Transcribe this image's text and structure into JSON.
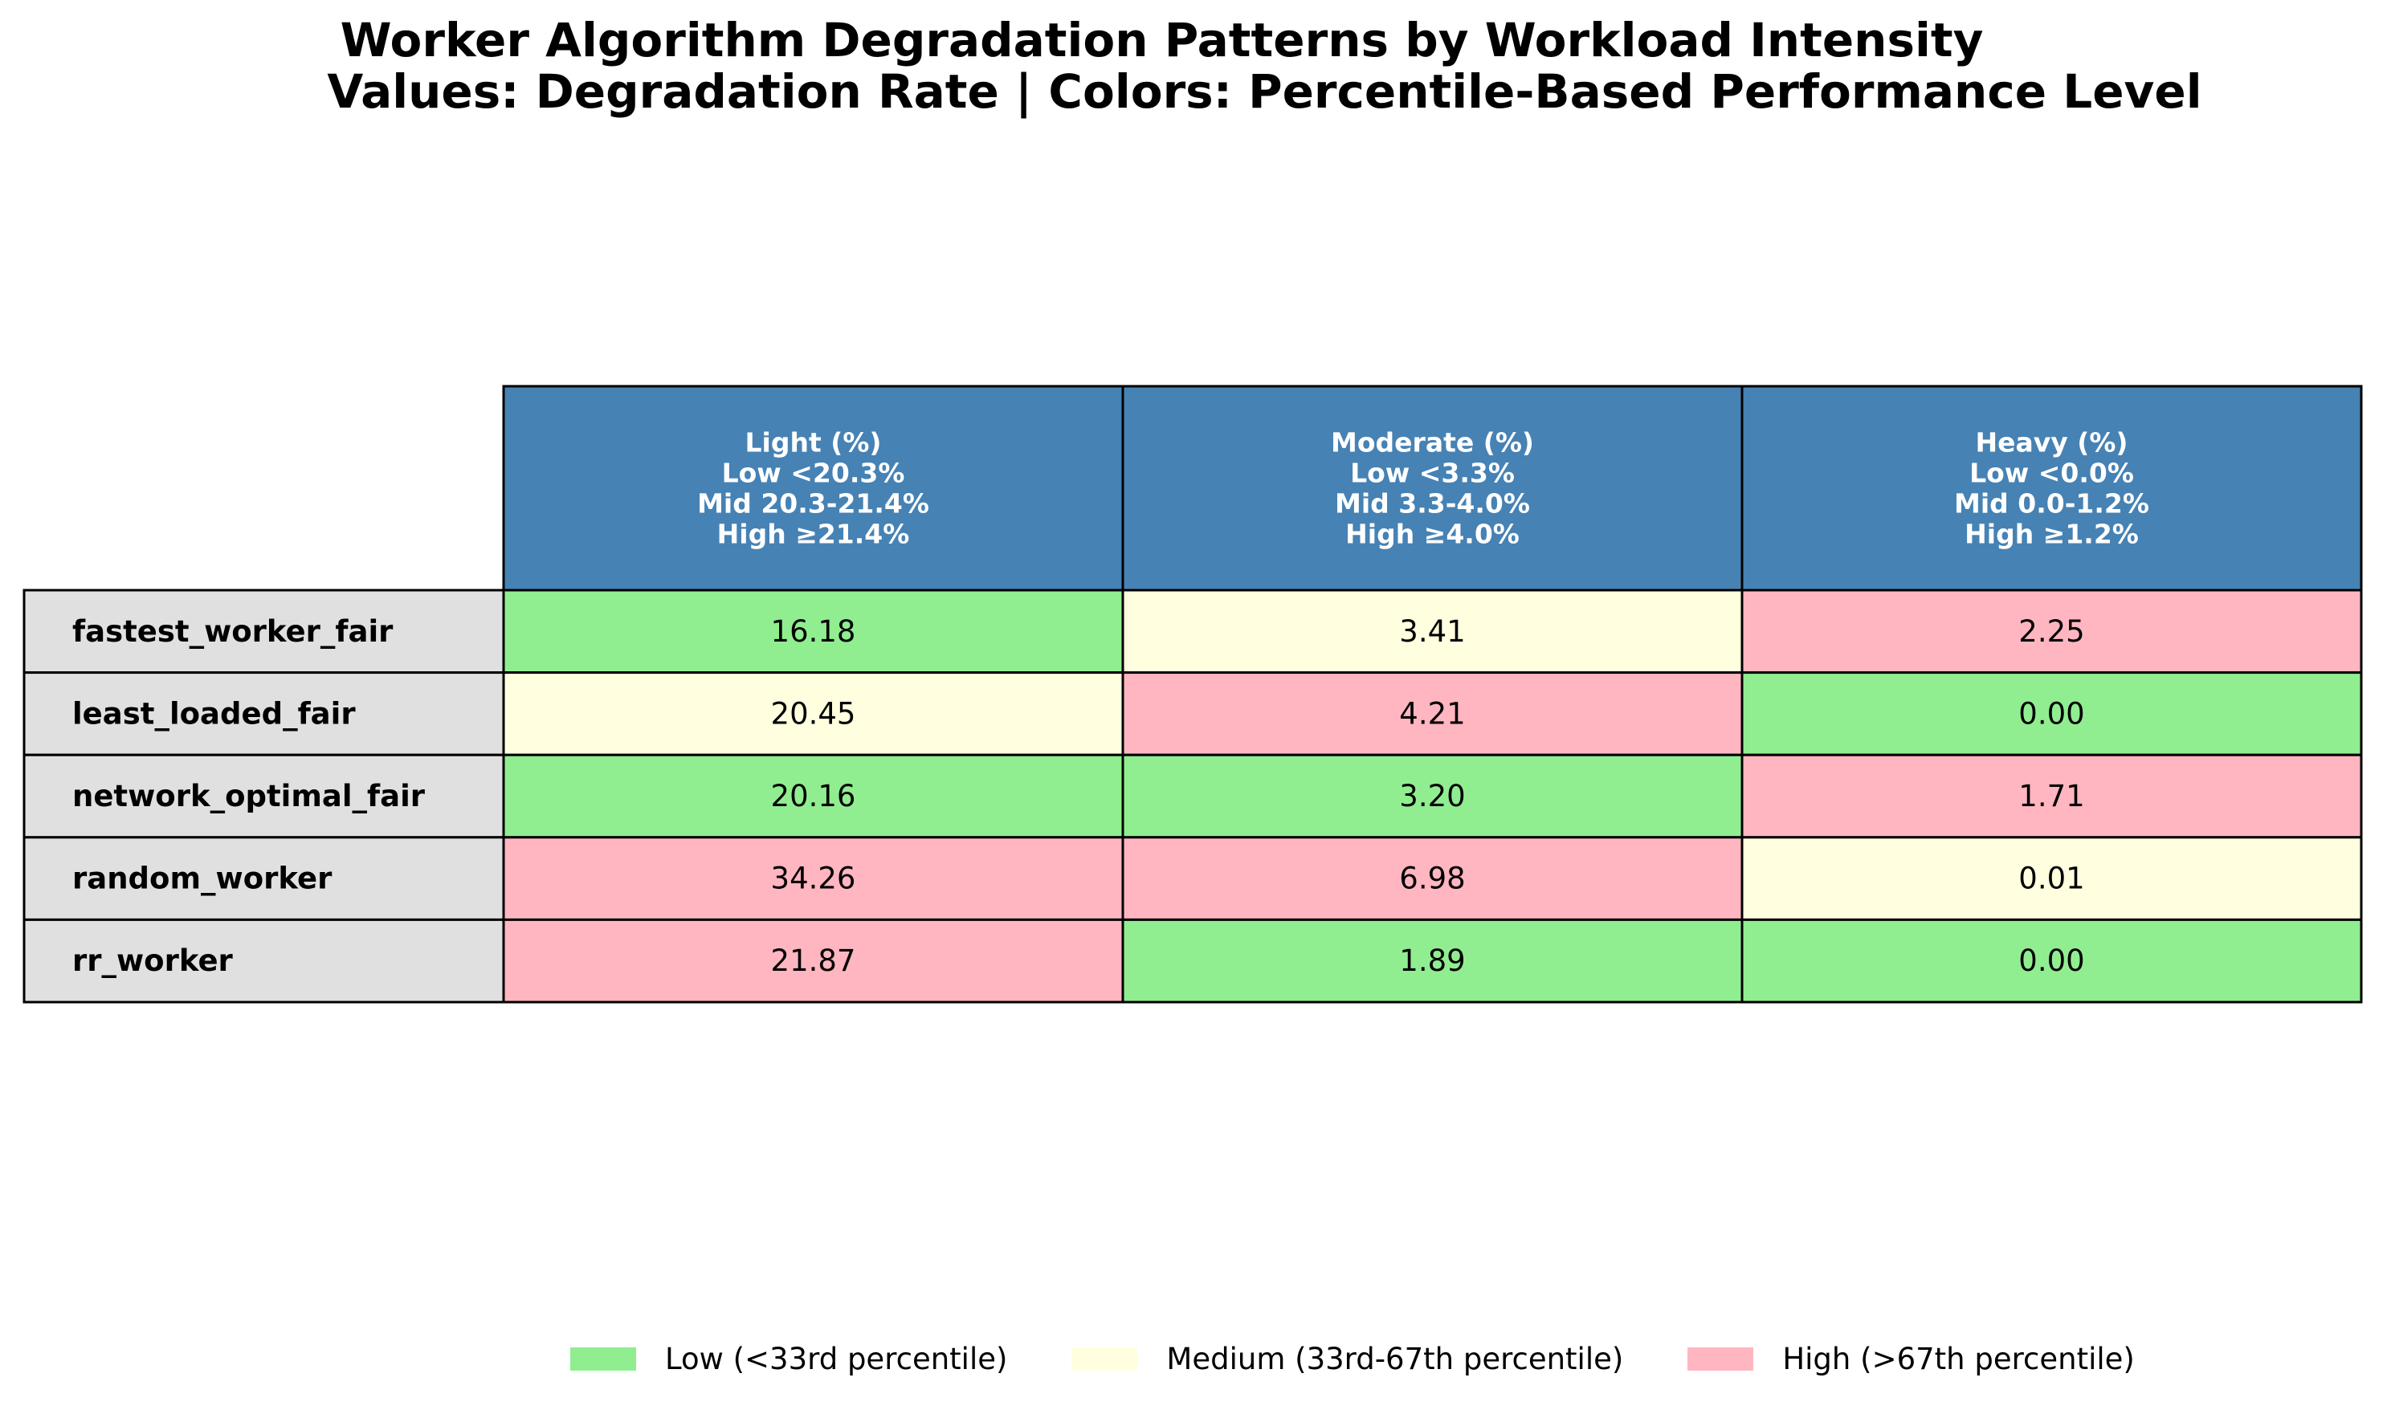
{
  "title_lines": [
    "Worker Algorithm Degradation Patterns by Workload Intensity",
    "Values: Degradation Rate | Colors: Percentile-Based Performance Level"
  ],
  "colors": {
    "header_bg": "#4682b4",
    "header_text": "#ffffff",
    "row_label_bg": "#e0e0e0",
    "low": "#90ee90",
    "medium": "#ffffe0",
    "high": "#ffb6c1",
    "border": "#000000"
  },
  "chart_data": {
    "type": "table",
    "columns": [
      {
        "header_lines": [
          "Light (%)",
          "Low <20.3%",
          "Mid 20.3-21.4%",
          "High ≥21.4%"
        ]
      },
      {
        "header_lines": [
          "Moderate (%)",
          "Low <3.3%",
          "Mid 3.3-4.0%",
          "High ≥4.0%"
        ]
      },
      {
        "header_lines": [
          "Heavy (%)",
          "Low <0.0%",
          "Mid 0.0-1.2%",
          "High ≥1.2%"
        ]
      }
    ],
    "rows": [
      {
        "label": "fastest_worker_fair",
        "values": [
          "16.18",
          "3.41",
          "2.25"
        ],
        "levels": [
          "low",
          "medium",
          "high"
        ]
      },
      {
        "label": "least_loaded_fair",
        "values": [
          "20.45",
          "4.21",
          "0.00"
        ],
        "levels": [
          "medium",
          "high",
          "low"
        ]
      },
      {
        "label": "network_optimal_fair",
        "values": [
          "20.16",
          "3.20",
          "1.71"
        ],
        "levels": [
          "low",
          "low",
          "high"
        ]
      },
      {
        "label": "random_worker",
        "values": [
          "34.26",
          "6.98",
          "0.01"
        ],
        "levels": [
          "high",
          "high",
          "medium"
        ]
      },
      {
        "label": "rr_worker",
        "values": [
          "21.87",
          "1.89",
          "0.00"
        ],
        "levels": [
          "high",
          "low",
          "low"
        ]
      }
    ],
    "legend": [
      {
        "level": "low",
        "label": "Low (<33rd percentile)"
      },
      {
        "level": "medium",
        "label": "Medium (33rd-67th percentile)"
      },
      {
        "level": "high",
        "label": "High (>67th percentile)"
      }
    ]
  }
}
